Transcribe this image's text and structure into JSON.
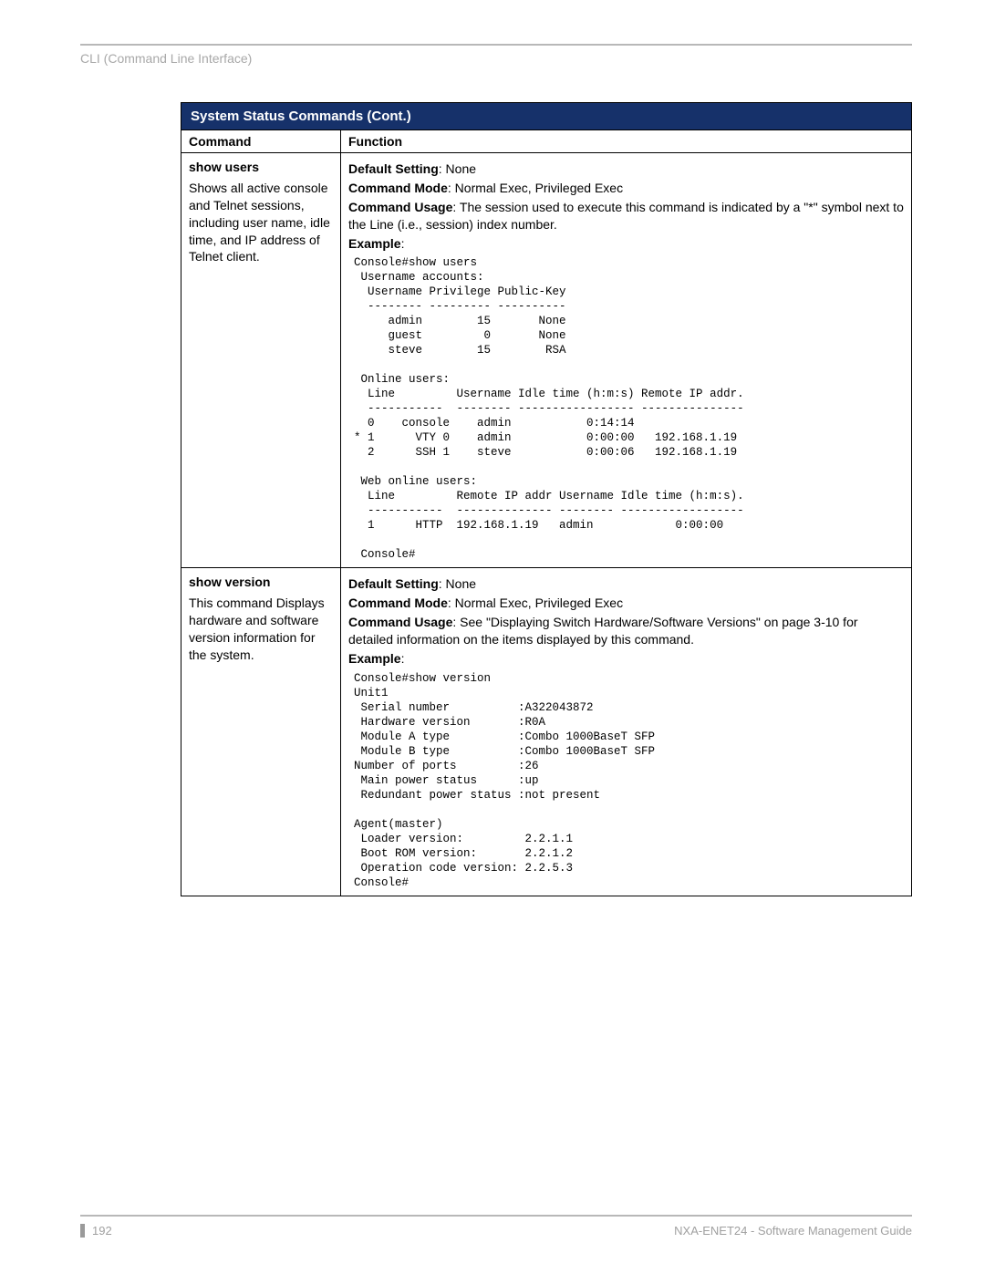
{
  "header": {
    "breadcrumb": "CLI (Command Line Interface)"
  },
  "table": {
    "title": "System Status Commands (Cont.)",
    "col_command": "Command",
    "col_function": "Function",
    "rows": [
      {
        "cmd": "show users",
        "desc": "Shows all active console and Telnet sessions, including user name, idle time, and IP address of Telnet client.",
        "default_label": "Default Setting",
        "default_value": ": None",
        "mode_label": "Command Mode",
        "mode_value": ": Normal Exec, Privileged Exec",
        "usage_label": "Command Usage",
        "usage_value": ": The session used to execute this command is indicated by a \"*\" symbol next to the Line (i.e., session) index number.",
        "example_label": "Example",
        "example_text": "Console#show users\n Username accounts:\n  Username Privilege Public-Key\n  -------- --------- ----------\n     admin        15       None\n     guest         0       None\n     steve        15        RSA\n\n Online users:\n  Line         Username Idle time (h:m:s) Remote IP addr.\n  -----------  -------- ----------------- ---------------\n  0    console    admin           0:14:14\n* 1      VTY 0    admin           0:00:00   192.168.1.19\n  2      SSH 1    steve           0:00:06   192.168.1.19\n\n Web online users:\n  Line         Remote IP addr Username Idle time (h:m:s).\n  -----------  -------------- -------- ------------------\n  1      HTTP  192.168.1.19   admin            0:00:00\n\n Console#"
      },
      {
        "cmd": "show version",
        "desc": "This command Displays hardware and software version information for the system.",
        "default_label": "Default Setting",
        "default_value": ": None",
        "mode_label": "Command Mode",
        "mode_value": ": Normal Exec, Privileged Exec",
        "usage_label": "Command Usage",
        "usage_value": ": See \"Displaying Switch Hardware/Software Versions\" on page 3-10 for detailed information on the items displayed by this command.",
        "example_label": "Example",
        "example_text": "Console#show version\nUnit1\n Serial number          :A322043872\n Hardware version       :R0A\n Module A type          :Combo 1000BaseT SFP\n Module B type          :Combo 1000BaseT SFP\nNumber of ports         :26\n Main power status      :up\n Redundant power status :not present\n\nAgent(master)\n Loader version:         2.2.1.1\n Boot ROM version:       2.2.1.2\n Operation code version: 2.2.5.3\nConsole#"
      }
    ]
  },
  "footer": {
    "page": "192",
    "doc": "NXA-ENET24 - Software Management Guide"
  }
}
